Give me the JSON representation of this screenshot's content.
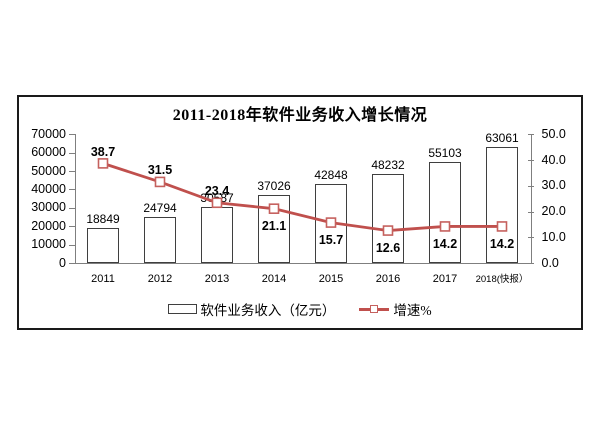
{
  "chart_data": {
    "type": "bar+line combo",
    "title": "2011-2018年软件业务收入增长情况",
    "categories": [
      "2011",
      "2012",
      "2013",
      "2014",
      "2015",
      "2016",
      "2017",
      "2018(快报）"
    ],
    "series": [
      {
        "name": "软件业务收入（亿元）",
        "type": "bar",
        "axis": "left",
        "values": [
          18849,
          24794,
          30587,
          37026,
          42848,
          48232,
          55103,
          63061
        ],
        "fill": "#ffffff",
        "border_color": "#3f3f3f"
      },
      {
        "name": "增速%",
        "type": "line",
        "axis": "right",
        "values": [
          38.7,
          31.5,
          23.4,
          21.1,
          15.7,
          12.6,
          14.2,
          14.2
        ],
        "color": "#c0504d",
        "marker": "square-open",
        "label_side": [
          "above",
          "above",
          "above",
          "below",
          "below",
          "below",
          "below",
          "below"
        ]
      }
    ],
    "axes": {
      "left": {
        "min": 0,
        "max": 70000,
        "step": 10000,
        "ticks_top_to_bottom": [
          "70000",
          "60000",
          "50000",
          "40000",
          "30000",
          "20000",
          "10000",
          "0"
        ]
      },
      "right": {
        "min": 0,
        "max": 50,
        "step": 10,
        "ticks_top_to_bottom": [
          "50.0",
          "40.0",
          "30.0",
          "20.0",
          "10.0",
          "0.0"
        ]
      }
    },
    "grid": false,
    "legend_position": "bottom-center",
    "legend": [
      {
        "label": "软件业务收入（亿元）",
        "swatch": "bar"
      },
      {
        "label": "增速%",
        "swatch": "line-marker"
      }
    ]
  },
  "colors": {
    "line": "#c0504d",
    "marker_border": "#c5615e",
    "bar_border": "#3f3f3f",
    "axis": "#7f7f7f",
    "frame": "#1a1a1a",
    "text": "#000000",
    "background": "#ffffff"
  }
}
